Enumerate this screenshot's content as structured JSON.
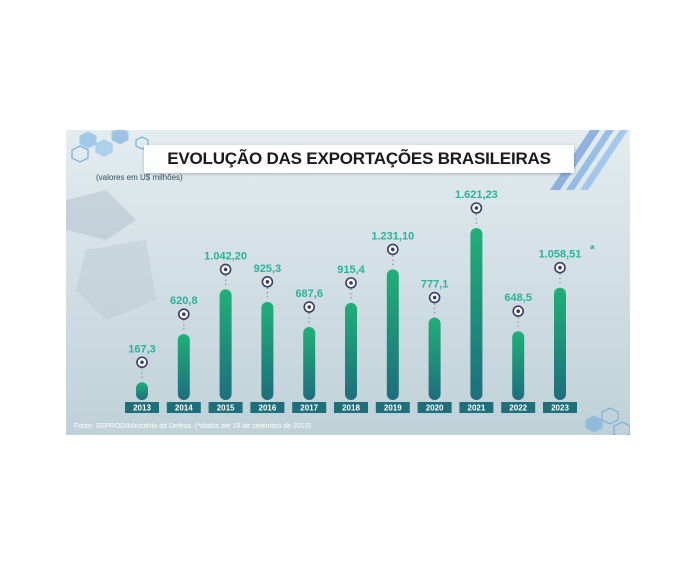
{
  "chart_data": {
    "type": "bar",
    "title": "EVOLUÇÃO DAS EXPORTAÇÕES BRASILEIRAS",
    "subtitle": "(valores em U$ milhões)",
    "categories": [
      "2013",
      "2014",
      "2015",
      "2016",
      "2017",
      "2018",
      "2019",
      "2020",
      "2021",
      "2022",
      "2023"
    ],
    "values": [
      167.3,
      620.8,
      1042.2,
      925.3,
      687.6,
      915.4,
      1231.1,
      777.1,
      1621.23,
      648.5,
      1058.51
    ],
    "value_labels": [
      "167,3",
      "620,8",
      "1.042,20",
      "925,3",
      "687,6",
      "915,4",
      "1.231,10",
      "777,1",
      "1.621,23",
      "648,5",
      "1.058,51"
    ],
    "annotations": [
      "*"
    ],
    "source": "Fonte: SEPROD/Ministério da Defesa. (*dados até 18 de setembro de 2023)",
    "ylim": [
      0,
      1621.23
    ],
    "grid": false,
    "colors": {
      "bar_top": "#1fb077",
      "bar_bottom": "#1e6e7e",
      "label": "#2bb29a",
      "marker": "#3a3a6a",
      "year_tag": "#1e6f7a"
    }
  }
}
